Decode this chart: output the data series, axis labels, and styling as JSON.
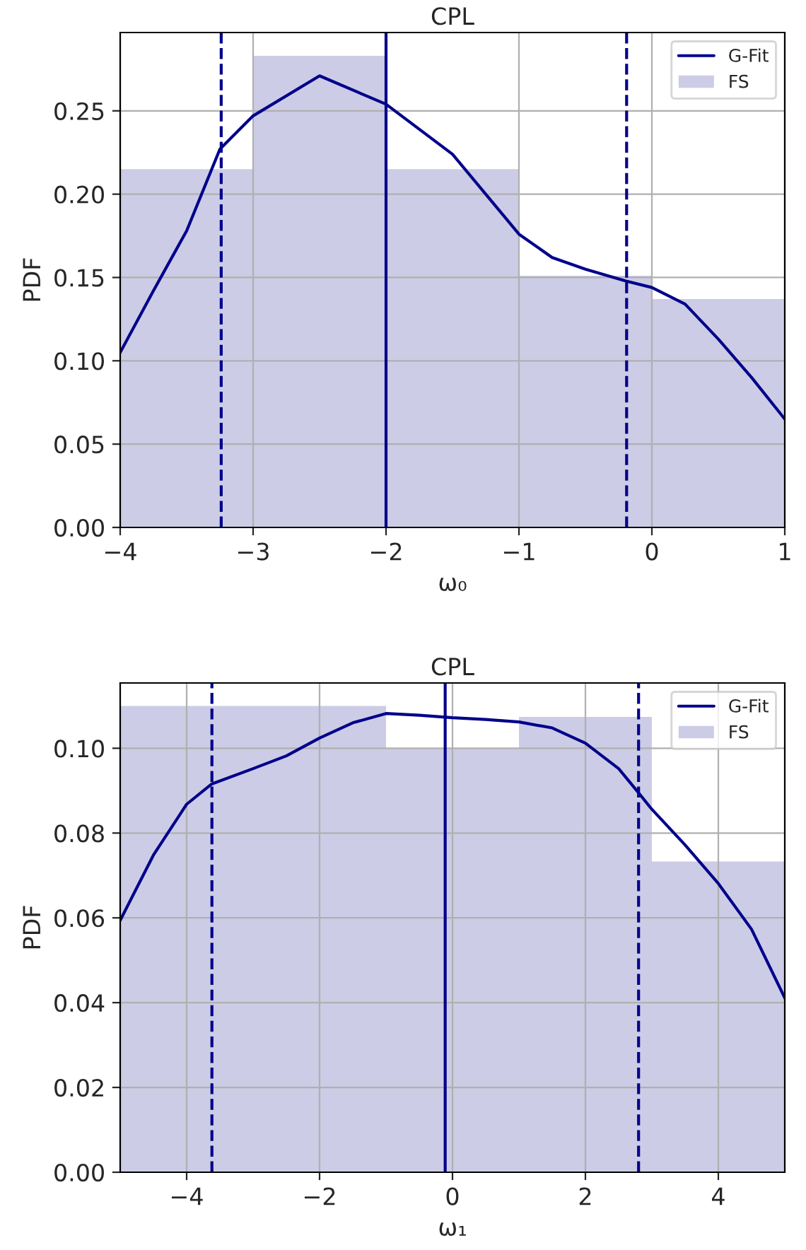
{
  "chart_data": [
    {
      "type": "histogram",
      "title": "CPL",
      "xlabel": "ω₀",
      "ylabel": "PDF",
      "bins": [
        -4,
        -3,
        -2,
        -1,
        0,
        1
      ],
      "series": [
        {
          "name": "G-Fit",
          "type": "line",
          "color": "#00008b",
          "x": [
            -4,
            -3.75,
            -3.5,
            -3.25,
            -3,
            -2.5,
            -2,
            -1.5,
            -1.25,
            -1,
            -0.75,
            -0.5,
            -0.2,
            0,
            0.25,
            0.5,
            0.75,
            1
          ],
          "values": [
            0.105,
            0.142,
            0.178,
            0.227,
            0.247,
            0.271,
            0.254,
            0.224,
            0.2,
            0.176,
            0.162,
            0.155,
            0.148,
            0.144,
            0.134,
            0.113,
            0.09,
            0.065
          ]
        },
        {
          "name": "FS",
          "color": "#cccce6",
          "values": [
            0.215,
            0.283,
            0.215,
            0.151,
            0.137
          ]
        }
      ],
      "ref_lines": [
        {
          "axis": "x",
          "value": -3.24,
          "color": "#00008b",
          "line_style": "dashed"
        },
        {
          "axis": "x",
          "value": -2.0,
          "color": "#00008b",
          "line_style": "solid"
        },
        {
          "axis": "x",
          "value": -0.19,
          "color": "#00008b",
          "line_style": "dashed"
        }
      ],
      "xlim": [
        -4,
        1
      ],
      "ylim": [
        0,
        0.297
      ],
      "xticks": [
        {
          "value": -4,
          "label": "−4"
        },
        {
          "value": -3,
          "label": "−3"
        },
        {
          "value": -2,
          "label": "−2"
        },
        {
          "value": -1,
          "label": "−1"
        },
        0,
        1
      ],
      "yticks": [
        {
          "value": 0,
          "label": "0.00"
        },
        {
          "value": 0.05,
          "label": "0.05"
        },
        {
          "value": 0.1,
          "label": "0.10"
        },
        {
          "value": 0.15,
          "label": "0.15"
        },
        {
          "value": 0.2,
          "label": "0.20"
        },
        {
          "value": 0.25,
          "label": "0.25"
        }
      ],
      "grid": true,
      "legend": "top right"
    },
    {
      "type": "histogram",
      "title": "CPL",
      "xlabel": "ω₁",
      "ylabel": "PDF",
      "bins": [
        -5,
        -3,
        -1,
        1,
        3,
        5
      ],
      "series": [
        {
          "name": "G-Fit",
          "type": "line",
          "color": "#00008b",
          "x": [
            -5,
            -4.5,
            -4,
            -3.62,
            -3,
            -2.5,
            -2,
            -1.5,
            -1,
            -0.5,
            0,
            0.5,
            1,
            1.5,
            2,
            2.5,
            2.8,
            3,
            3.5,
            4,
            4.5,
            5
          ],
          "values": [
            0.0594,
            0.0748,
            0.0868,
            0.0916,
            0.0952,
            0.0982,
            0.1024,
            0.106,
            0.1082,
            0.1078,
            0.1072,
            0.1068,
            0.1062,
            0.1048,
            0.1012,
            0.0952,
            0.0895,
            0.0856,
            0.0772,
            0.0681,
            0.0573,
            0.0411
          ]
        },
        {
          "name": "FS",
          "color": "#cccce6",
          "values": [
            0.11,
            0.11,
            0.1,
            0.1074,
            0.0733
          ]
        }
      ],
      "ref_lines": [
        {
          "axis": "x",
          "value": -3.62,
          "color": "#00008b",
          "line_style": "dashed"
        },
        {
          "axis": "x",
          "value": -0.11,
          "color": "#00008b",
          "line_style": "solid"
        },
        {
          "axis": "x",
          "value": 2.8,
          "color": "#00008b",
          "line_style": "dashed"
        }
      ],
      "xlim": [
        -5,
        5
      ],
      "ylim": [
        0,
        0.1154
      ],
      "xticks": [
        {
          "value": -4,
          "label": "−4"
        },
        {
          "value": -2,
          "label": "−2"
        },
        0,
        2,
        4
      ],
      "yticks": [
        {
          "value": 0,
          "label": "0.00"
        },
        {
          "value": 0.02,
          "label": "0.02"
        },
        {
          "value": 0.04,
          "label": "0.04"
        },
        {
          "value": 0.06,
          "label": "0.06"
        },
        {
          "value": 0.08,
          "label": "0.08"
        },
        {
          "value": 0.1,
          "label": "0.10"
        }
      ],
      "grid": true,
      "legend": "top right"
    }
  ]
}
